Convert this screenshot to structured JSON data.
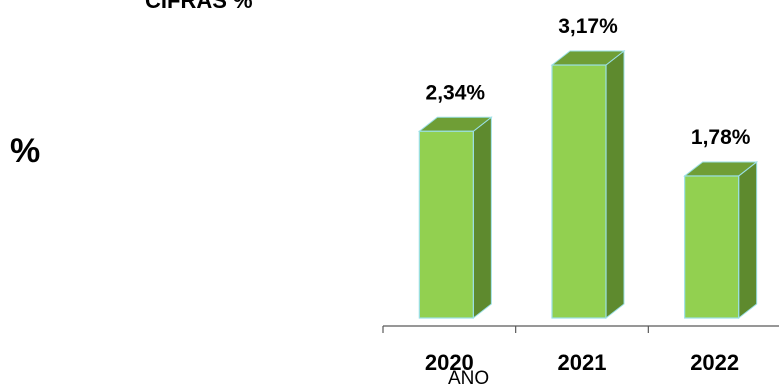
{
  "chart_data": {
    "type": "bar",
    "title": "CIFRAS %",
    "ylabel": "%",
    "xlabel": "AÑO",
    "categories": [
      "2020",
      "2021",
      "2022"
    ],
    "values": [
      2.34,
      3.17,
      1.78
    ],
    "data_labels": [
      "2,34%",
      "3,17%",
      "1,78%"
    ],
    "ylim": [
      0,
      3.5
    ],
    "grid": false,
    "colors": {
      "bar_front": "#92d050",
      "bar_side": "#5e8a2e",
      "bar_top": "#6f9e36",
      "bar_outline": "#9be0e6",
      "axis": "#595959"
    }
  }
}
